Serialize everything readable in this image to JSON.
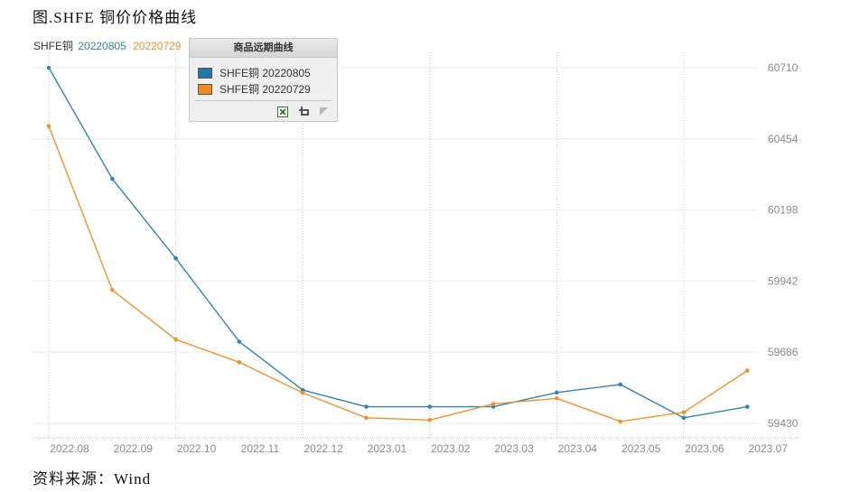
{
  "figure": {
    "title": "图.SHFE 铜价价格曲线",
    "source": "资料来源：Wind"
  },
  "legend_top": {
    "prefix": "SHFE铜",
    "items": [
      {
        "label": "20220805",
        "color": "#2e86ab"
      },
      {
        "label": "20220729",
        "color": "#f0912d"
      }
    ]
  },
  "legend_panel": {
    "title": "商品远期曲线",
    "items": [
      {
        "label": "SHFE铜 20220805",
        "color": "#2379a6"
      },
      {
        "label": "SHFE铜 20220729",
        "color": "#f08a1c"
      }
    ],
    "tools": [
      "excel-export-icon",
      "crop-icon",
      "cursor-icon"
    ]
  },
  "chart_data": {
    "type": "line",
    "categories": [
      "2022.08",
      "2022.09",
      "2022.10",
      "2022.11",
      "2022.12",
      "2023.01",
      "2023.02",
      "2023.03",
      "2023.04",
      "2023.05",
      "2023.06",
      "2023.07"
    ],
    "y_ticks": [
      59430,
      59686,
      59942,
      60198,
      60454,
      60710
    ],
    "ylim": [
      59430,
      60710
    ],
    "y_axis_position": "right",
    "grid": {
      "vertical_dotted": true,
      "horizontal": true
    },
    "series": [
      {
        "name": "SHFE铜 20220805",
        "color": "#2e86ab",
        "values": [
          60710,
          60310,
          60024,
          59724,
          59550,
          59490,
          59490,
          59490,
          59541,
          59570,
          59450,
          59490
        ]
      },
      {
        "name": "SHFE铜 20220729",
        "color": "#f0912d",
        "values": [
          60500,
          59910,
          59732,
          59650,
          59540,
          59450,
          59442,
          59500,
          59520,
          59437,
          59470,
          59620
        ]
      }
    ]
  }
}
